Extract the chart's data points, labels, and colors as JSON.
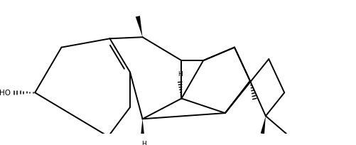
{
  "bg_color": "#ffffff",
  "line_color": "#000000",
  "lw": 1.4,
  "figsize": [
    5.01,
    2.05
  ],
  "dpi": 100,
  "xlim": [
    -0.5,
    10.2
  ],
  "ylim": [
    0.2,
    4.3
  ]
}
